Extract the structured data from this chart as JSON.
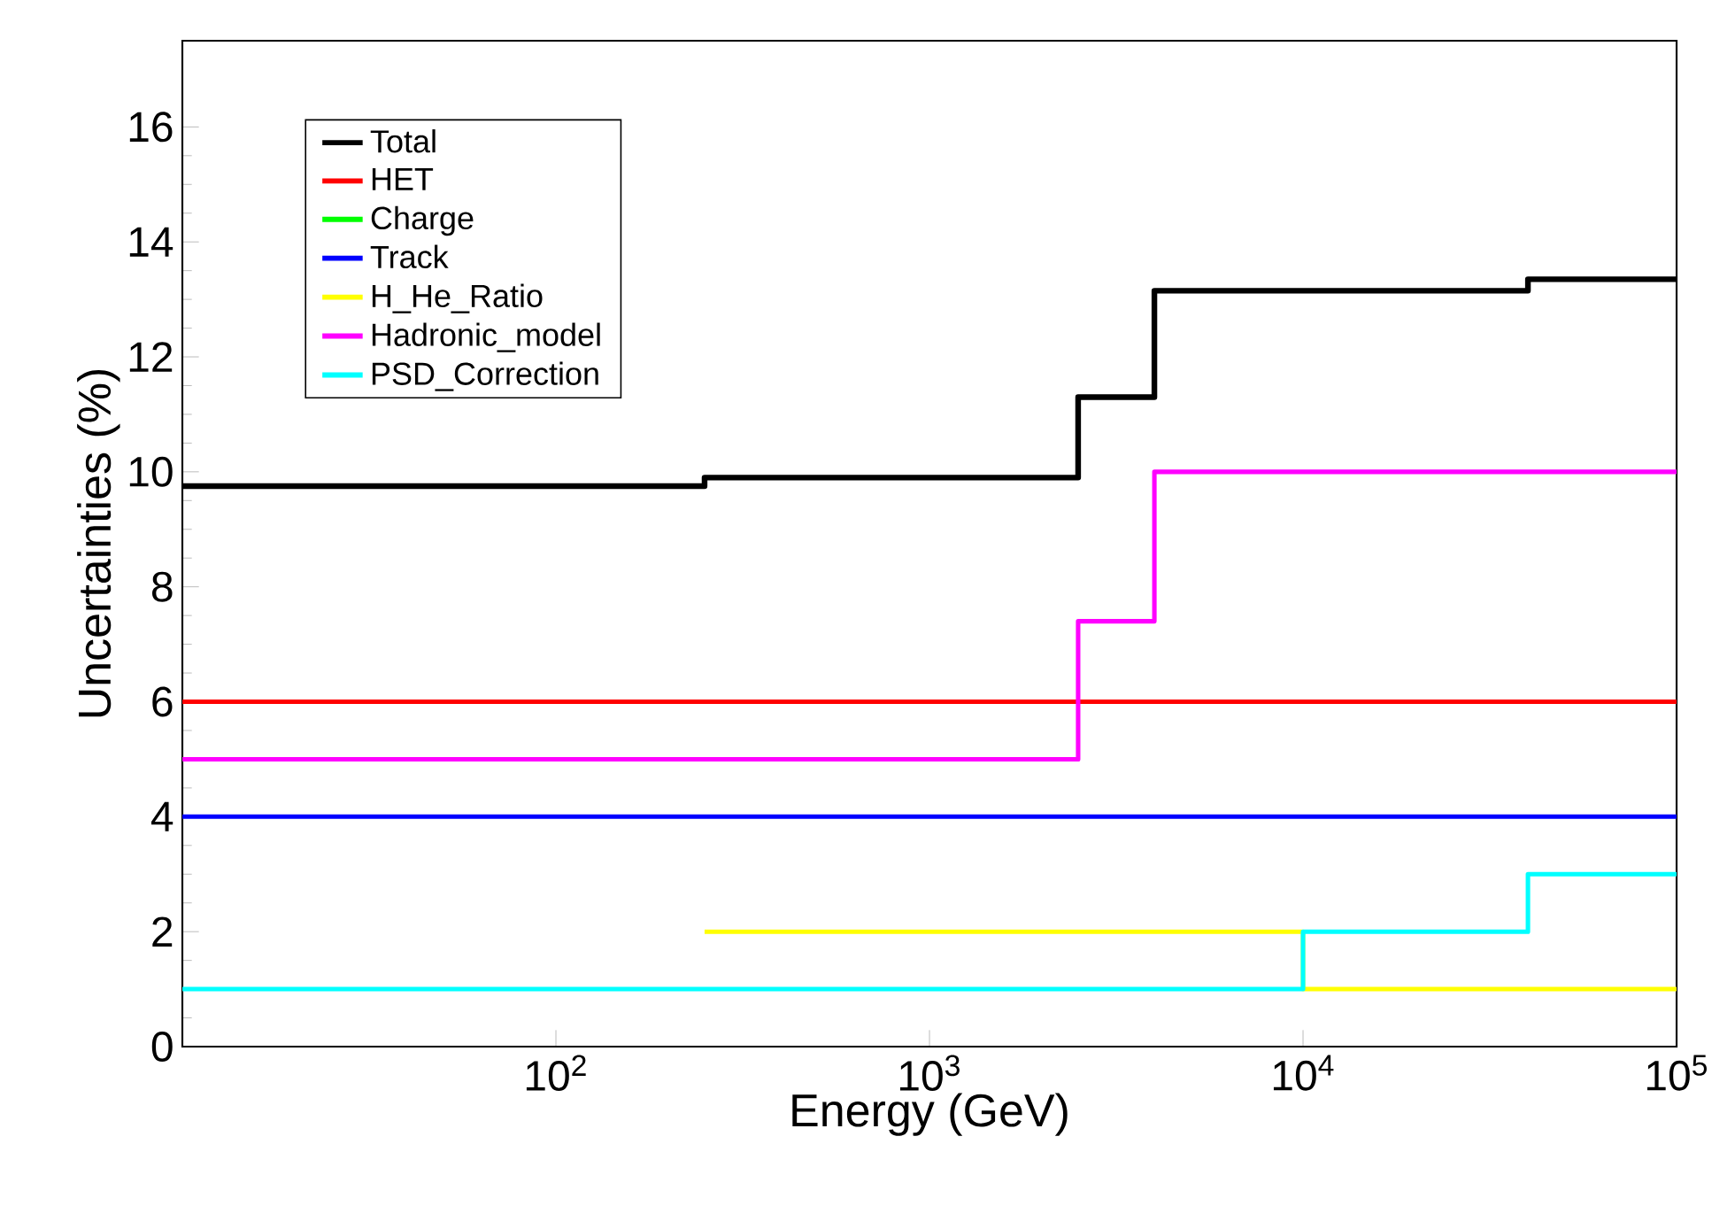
{
  "chart_data": {
    "type": "step",
    "xlabel": "Energy (GeV)",
    "ylabel": "Uncertainties (%)",
    "log": "x",
    "xlim": [
      10,
      100000
    ],
    "ylim": [
      0,
      17.5
    ],
    "xticks": [
      {
        "value": 100,
        "label": "10$^{2}$"
      },
      {
        "value": 1000,
        "label": "10$^{3}$"
      },
      {
        "value": 10000,
        "label": "10$^{4}$"
      },
      {
        "value": 100000,
        "label": "10$^{5}$"
      }
    ],
    "yticks": [
      0,
      2,
      4,
      6,
      8,
      10,
      12,
      14,
      16
    ],
    "grid": false,
    "legend": "top left",
    "marker": "none",
    "line_style": "solid",
    "x": [
      10,
      250,
      2500,
      4000,
      10000,
      40000,
      100000
    ],
    "series": [
      {
        "name": "Total",
        "color": "#000000",
        "values": [
          9.75,
          9.9,
          11.3,
          13.15,
          13.15,
          13.35,
          13.35
        ]
      },
      {
        "name": "HET",
        "color": "#ff0000",
        "values": [
          6,
          6,
          6,
          6,
          6,
          6,
          6
        ]
      },
      {
        "name": "Charge",
        "color": "#00ff00",
        "values": [
          null,
          null,
          null,
          null,
          null,
          null,
          null
        ]
      },
      {
        "name": "Track",
        "color": "#0000ff",
        "values": [
          4,
          4,
          4,
          4,
          4,
          4,
          4
        ]
      },
      {
        "name": "H_He_Ratio",
        "color": "#ffff00",
        "values": [
          null,
          2,
          2,
          2,
          1,
          1,
          1
        ]
      },
      {
        "name": "Hadronic_model",
        "color": "#ff00ff",
        "values": [
          5,
          5,
          7.4,
          10,
          10,
          10,
          10
        ]
      },
      {
        "name": "PSD_Correction",
        "color": "#00ffff",
        "values": [
          1,
          1,
          1,
          1,
          2,
          3,
          3
        ]
      }
    ]
  }
}
